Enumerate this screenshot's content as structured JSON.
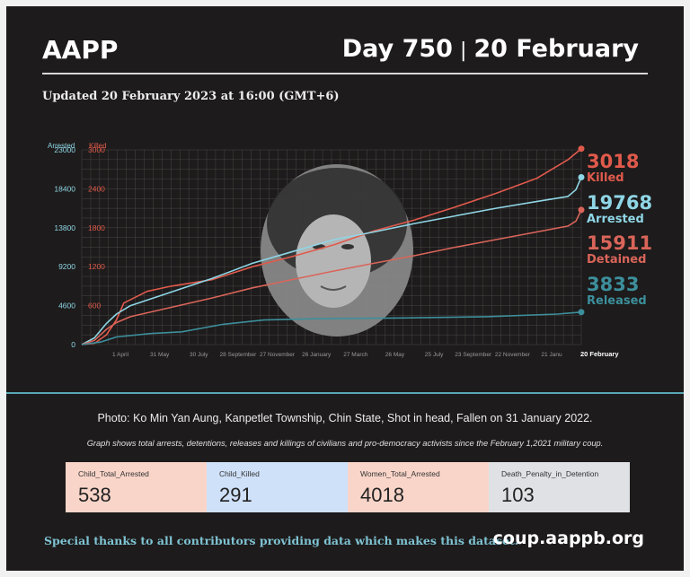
{
  "header": {
    "brand": "AAPP",
    "day": "Day 750",
    "separator": "|",
    "date": "20 February",
    "updated": "Updated 20 February 2023 at 16:00 (GMT+6)"
  },
  "chart_data": {
    "type": "line",
    "left_axis_label": "Arrested",
    "right_axis_label": "Killed",
    "arrested_ticks": [
      "23000",
      "18400",
      "13800",
      "9200",
      "4600",
      "0"
    ],
    "killed_ticks": [
      "3000",
      "2400",
      "1800",
      "1200",
      "600",
      ""
    ],
    "x_labels": [
      "1 April",
      "31 May",
      "30 July",
      "28 September",
      "27 November",
      "26 January",
      "27 March",
      "26 May",
      "25 July",
      "23 September",
      "22 November",
      "21 Janu",
      "20 February"
    ],
    "arrested_ylim": [
      0,
      23000
    ],
    "killed_ylim": [
      0,
      3000
    ],
    "grid": true,
    "series": [
      {
        "name": "Killed",
        "end_value": "3018",
        "color": "#e05a4c",
        "axis": "killed",
        "x": [
          "2021-02-01",
          "2021-02-20",
          "2021-03-10",
          "2021-03-25",
          "2021-04-05",
          "2021-05-10",
          "2021-06-15",
          "2021-08-15",
          "2021-10-15",
          "2021-12-15",
          "2022-02-15",
          "2022-04-15",
          "2022-06-15",
          "2022-08-15",
          "2022-10-15",
          "2022-12-15",
          "2023-01-31",
          "2023-02-20"
        ],
        "values": [
          0,
          20,
          150,
          380,
          640,
          820,
          900,
          1000,
          1200,
          1360,
          1540,
          1750,
          1920,
          2120,
          2330,
          2560,
          2850,
          3018
        ]
      },
      {
        "name": "Arrested",
        "end_value": "19768",
        "color": "#8fd6e6",
        "axis": "arrested",
        "x": [
          "2021-02-01",
          "2021-02-20",
          "2021-03-10",
          "2021-03-25",
          "2021-04-15",
          "2021-06-15",
          "2021-08-15",
          "2021-10-15",
          "2021-12-15",
          "2022-02-15",
          "2022-04-15",
          "2022-06-15",
          "2022-08-15",
          "2022-10-15",
          "2022-12-15",
          "2023-01-31",
          "2023-02-12",
          "2023-02-20"
        ],
        "values": [
          0,
          800,
          2500,
          3600,
          4600,
          6200,
          7800,
          9600,
          11000,
          12400,
          13300,
          14300,
          15200,
          16100,
          16900,
          17500,
          18300,
          19768
        ]
      },
      {
        "name": "Detained",
        "end_value": "15911",
        "color": "#d9655a",
        "axis": "arrested",
        "x": [
          "2021-02-01",
          "2021-02-20",
          "2021-03-10",
          "2021-03-25",
          "2021-04-15",
          "2021-06-15",
          "2021-08-15",
          "2021-10-15",
          "2021-12-15",
          "2022-02-15",
          "2022-04-15",
          "2022-06-15",
          "2022-08-15",
          "2022-10-15",
          "2022-12-15",
          "2023-01-31",
          "2023-02-12",
          "2023-02-20"
        ],
        "values": [
          0,
          500,
          1800,
          2600,
          3300,
          4400,
          5500,
          6700,
          7700,
          8700,
          9600,
          10500,
          11500,
          12400,
          13300,
          14000,
          14600,
          15911
        ]
      },
      {
        "name": "Released",
        "end_value": "3833",
        "color": "#3d8f9c",
        "axis": "arrested",
        "x": [
          "2021-02-01",
          "2021-03-01",
          "2021-03-25",
          "2021-05-15",
          "2021-07-01",
          "2021-09-01",
          "2021-11-01",
          "2022-01-15",
          "2022-06-01",
          "2022-10-01",
          "2023-01-15",
          "2023-02-20"
        ],
        "values": [
          0,
          300,
          900,
          1300,
          1500,
          2400,
          2900,
          3050,
          3150,
          3300,
          3600,
          3833
        ]
      }
    ]
  },
  "caption": "Photo: Ko Min Yan Aung,  Kanpetlet Township, Chin State, Shot in head, Fallen on 31 January 2022.",
  "note": "Graph shows total arrests, detentions, releases and killings of civilians and pro-democracy activists since the February 1,2021 military coup.",
  "stats": [
    {
      "label": "Child_Total_Arrested",
      "value": "538",
      "color": "#f9d5c9"
    },
    {
      "label": "Child_Killed",
      "value": "291",
      "color": "#cfe1f9"
    },
    {
      "label": "Women_Total_Arrested",
      "value": "4018",
      "color": "#f9d5c9"
    },
    {
      "label": "Death_Penalty_in_Detention",
      "value": "103",
      "color": "#dfe1e5"
    }
  ],
  "footer": {
    "thanks": "Special thanks to all contributors providing data which makes this dataset.",
    "site": "coup.aappb.org"
  }
}
